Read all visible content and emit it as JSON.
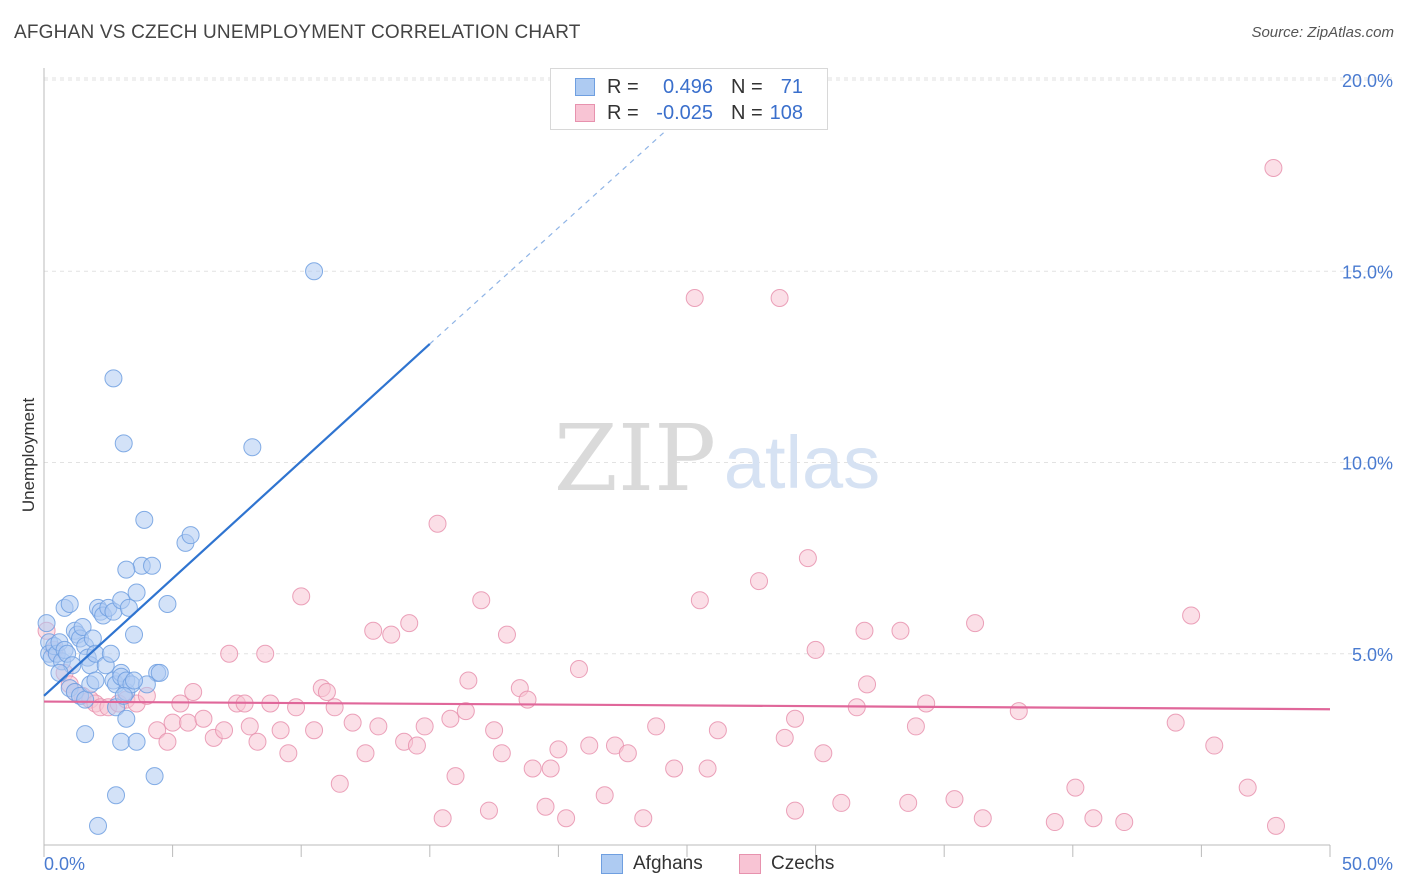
{
  "title": "AFGHAN VS CZECH UNEMPLOYMENT CORRELATION CHART",
  "source": "Source: ZipAtlas.com",
  "watermark": {
    "zip": "ZIP",
    "atlas": "atlas"
  },
  "legend": {
    "rows": [
      {
        "r_label": "R =",
        "r_value": "0.496",
        "n_label": "N =",
        "n_value": "71",
        "color": "#aecbf2",
        "border": "#6f9fe0"
      },
      {
        "r_label": "R =",
        "r_value": "-0.025",
        "n_label": "N =",
        "n_value": "108",
        "color": "#f8c4d4",
        "border": "#e792ae"
      }
    ]
  },
  "bottom_legend": [
    {
      "label": "Afghans",
      "color": "#aecbf2",
      "border": "#6f9fe0"
    },
    {
      "label": "Czechs",
      "color": "#f8c4d4",
      "border": "#e792ae"
    }
  ],
  "chart_data": {
    "type": "scatter",
    "title": "AFGHAN VS CZECH UNEMPLOYMENT CORRELATION CHART",
    "xlabel": "",
    "ylabel": "Unemployment",
    "xlim": [
      0,
      50
    ],
    "ylim": [
      0,
      20
    ],
    "x_tick_labels": [
      "0.0%",
      "50.0%"
    ],
    "y_ticks": [
      5,
      10,
      15,
      20
    ],
    "y_tick_labels": [
      "5.0%",
      "10.0%",
      "15.0%",
      "20.0%"
    ],
    "grid": true,
    "legend_position": "top-center",
    "series": [
      {
        "name": "Afghans",
        "color": "#6f9fe0",
        "fill": "#aecbf2",
        "r": 0.496,
        "n": 71,
        "trend": {
          "x": [
            0,
            15
          ],
          "y": [
            3.9,
            13.1
          ],
          "dashed_to": {
            "x": 25.7,
            "y": 19.6
          }
        },
        "points": [
          [
            0.1,
            5.8
          ],
          [
            0.2,
            5.3
          ],
          [
            0.2,
            5.0
          ],
          [
            0.3,
            4.9
          ],
          [
            0.4,
            5.2
          ],
          [
            0.5,
            5.0
          ],
          [
            0.6,
            5.3
          ],
          [
            0.7,
            4.8
          ],
          [
            0.8,
            5.1
          ],
          [
            0.9,
            5.0
          ],
          [
            0.8,
            6.2
          ],
          [
            1.0,
            6.3
          ],
          [
            1.2,
            5.6
          ],
          [
            1.3,
            5.5
          ],
          [
            1.4,
            5.4
          ],
          [
            1.5,
            5.7
          ],
          [
            1.6,
            5.2
          ],
          [
            1.7,
            4.9
          ],
          [
            1.8,
            4.7
          ],
          [
            1.9,
            5.4
          ],
          [
            2.0,
            5.0
          ],
          [
            2.1,
            6.2
          ],
          [
            2.2,
            6.1
          ],
          [
            2.3,
            6.0
          ],
          [
            2.4,
            4.7
          ],
          [
            2.6,
            5.0
          ],
          [
            2.7,
            4.3
          ],
          [
            2.8,
            4.2
          ],
          [
            3.0,
            4.5
          ],
          [
            3.2,
            4.0
          ],
          [
            1.0,
            4.1
          ],
          [
            1.2,
            4.0
          ],
          [
            1.4,
            3.9
          ],
          [
            1.6,
            3.8
          ],
          [
            1.8,
            4.2
          ],
          [
            2.0,
            4.3
          ],
          [
            2.5,
            6.2
          ],
          [
            2.7,
            6.1
          ],
          [
            3.0,
            6.4
          ],
          [
            3.3,
            6.2
          ],
          [
            3.5,
            5.5
          ],
          [
            3.6,
            6.6
          ],
          [
            3.8,
            7.3
          ],
          [
            3.2,
            7.2
          ],
          [
            4.2,
            7.3
          ],
          [
            4.8,
            6.3
          ],
          [
            4.4,
            4.5
          ],
          [
            4.5,
            4.5
          ],
          [
            5.5,
            7.9
          ],
          [
            5.7,
            8.1
          ],
          [
            3.0,
            4.4
          ],
          [
            3.2,
            4.3
          ],
          [
            3.4,
            4.2
          ],
          [
            4.0,
            4.2
          ],
          [
            3.5,
            4.3
          ],
          [
            2.8,
            3.6
          ],
          [
            3.1,
            3.9
          ],
          [
            1.6,
            2.9
          ],
          [
            3.2,
            3.3
          ],
          [
            3.0,
            2.7
          ],
          [
            3.6,
            2.7
          ],
          [
            4.3,
            1.8
          ],
          [
            2.8,
            1.3
          ],
          [
            2.1,
            0.5
          ],
          [
            2.7,
            12.2
          ],
          [
            3.1,
            10.5
          ],
          [
            3.9,
            8.5
          ],
          [
            8.1,
            10.4
          ],
          [
            10.5,
            15.0
          ],
          [
            1.1,
            4.7
          ],
          [
            0.6,
            4.5
          ]
        ]
      },
      {
        "name": "Czechs",
        "color": "#e792ae",
        "fill": "#f8c4d4",
        "r": -0.025,
        "n": 108,
        "trend": {
          "x": [
            0,
            50
          ],
          "y": [
            3.75,
            3.55
          ]
        },
        "points": [
          [
            0.1,
            5.6
          ],
          [
            0.4,
            5.1
          ],
          [
            0.8,
            4.5
          ],
          [
            1.0,
            4.2
          ],
          [
            1.2,
            4.0
          ],
          [
            1.5,
            3.9
          ],
          [
            1.8,
            3.8
          ],
          [
            2.0,
            3.7
          ],
          [
            2.2,
            3.6
          ],
          [
            2.5,
            3.6
          ],
          [
            2.9,
            3.7
          ],
          [
            3.2,
            3.8
          ],
          [
            3.6,
            3.7
          ],
          [
            4.0,
            3.9
          ],
          [
            4.4,
            3.0
          ],
          [
            4.8,
            2.7
          ],
          [
            5.0,
            3.2
          ],
          [
            5.3,
            3.7
          ],
          [
            5.6,
            3.2
          ],
          [
            5.8,
            4.0
          ],
          [
            6.2,
            3.3
          ],
          [
            6.6,
            2.8
          ],
          [
            7.0,
            3.0
          ],
          [
            7.2,
            5.0
          ],
          [
            7.5,
            3.7
          ],
          [
            7.8,
            3.7
          ],
          [
            8.0,
            3.1
          ],
          [
            8.3,
            2.7
          ],
          [
            8.6,
            5.0
          ],
          [
            8.8,
            3.7
          ],
          [
            9.2,
            3.0
          ],
          [
            9.5,
            2.4
          ],
          [
            9.8,
            3.6
          ],
          [
            10.0,
            6.5
          ],
          [
            10.5,
            3.0
          ],
          [
            10.8,
            4.1
          ],
          [
            11.0,
            4.0
          ],
          [
            11.3,
            3.6
          ],
          [
            11.5,
            1.6
          ],
          [
            12.0,
            3.2
          ],
          [
            12.5,
            2.4
          ],
          [
            12.8,
            5.6
          ],
          [
            13.0,
            3.1
          ],
          [
            13.5,
            5.5
          ],
          [
            14.0,
            2.7
          ],
          [
            14.2,
            5.8
          ],
          [
            14.5,
            2.6
          ],
          [
            14.8,
            3.1
          ],
          [
            15.3,
            8.4
          ],
          [
            15.5,
            0.7
          ],
          [
            15.8,
            3.3
          ],
          [
            16.0,
            1.8
          ],
          [
            16.4,
            3.5
          ],
          [
            16.5,
            4.3
          ],
          [
            17.0,
            6.4
          ],
          [
            17.3,
            0.9
          ],
          [
            17.5,
            3.0
          ],
          [
            17.8,
            2.4
          ],
          [
            18.0,
            5.5
          ],
          [
            18.5,
            4.1
          ],
          [
            18.8,
            3.8
          ],
          [
            19.0,
            2.0
          ],
          [
            19.5,
            1.0
          ],
          [
            19.7,
            2.0
          ],
          [
            20.0,
            2.5
          ],
          [
            20.3,
            0.7
          ],
          [
            20.8,
            4.6
          ],
          [
            21.2,
            2.6
          ],
          [
            21.8,
            1.3
          ],
          [
            22.2,
            2.6
          ],
          [
            22.7,
            2.4
          ],
          [
            23.3,
            0.7
          ],
          [
            23.8,
            3.1
          ],
          [
            24.5,
            2.0
          ],
          [
            25.3,
            14.3
          ],
          [
            25.5,
            6.4
          ],
          [
            25.8,
            2.0
          ],
          [
            26.2,
            3.0
          ],
          [
            27.8,
            6.9
          ],
          [
            28.6,
            14.3
          ],
          [
            28.8,
            2.8
          ],
          [
            29.2,
            3.3
          ],
          [
            29.7,
            7.5
          ],
          [
            29.2,
            0.9
          ],
          [
            30.0,
            5.1
          ],
          [
            30.3,
            2.4
          ],
          [
            31.0,
            1.1
          ],
          [
            31.6,
            3.6
          ],
          [
            31.9,
            5.6
          ],
          [
            32.0,
            4.2
          ],
          [
            33.3,
            5.6
          ],
          [
            33.6,
            1.1
          ],
          [
            33.9,
            3.1
          ],
          [
            34.3,
            3.7
          ],
          [
            35.4,
            1.2
          ],
          [
            36.2,
            5.8
          ],
          [
            36.5,
            0.7
          ],
          [
            37.9,
            3.5
          ],
          [
            39.3,
            0.6
          ],
          [
            40.1,
            1.5
          ],
          [
            40.8,
            0.7
          ],
          [
            42.0,
            0.6
          ],
          [
            44.0,
            3.2
          ],
          [
            44.6,
            6.0
          ],
          [
            45.5,
            2.6
          ],
          [
            46.8,
            1.5
          ],
          [
            47.8,
            17.7
          ],
          [
            47.9,
            0.5
          ]
        ]
      }
    ]
  }
}
